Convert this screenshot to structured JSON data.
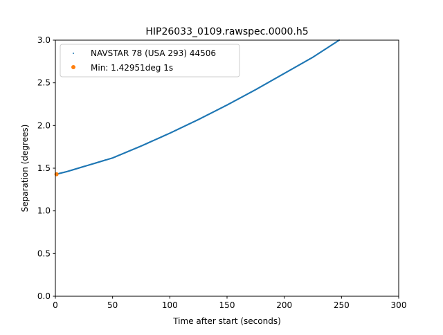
{
  "chart_data": {
    "type": "scatter",
    "title": "HIP26033_0109.rawspec.0000.h5",
    "xlabel": "Time after start (seconds)",
    "ylabel": "Separation (degrees)",
    "xlim": [
      0,
      300
    ],
    "ylim": [
      0.0,
      3.0
    ],
    "xticks": [
      "0",
      "50",
      "100",
      "150",
      "200",
      "250",
      "300"
    ],
    "yticks": [
      "0.0",
      "0.5",
      "1.0",
      "1.5",
      "2.0",
      "2.5",
      "3.0"
    ],
    "grid": false,
    "legend_position": "upper-left",
    "series": [
      {
        "name": "NAVSTAR 78 (USA 293) 44506",
        "color": "#1f77b4",
        "marker": "small-dot",
        "x": [
          1,
          10,
          25,
          50,
          75,
          100,
          125,
          150,
          175,
          200,
          225,
          248
        ],
        "y": [
          1.43,
          1.46,
          1.52,
          1.62,
          1.76,
          1.91,
          2.07,
          2.24,
          2.42,
          2.61,
          2.8,
          3.0
        ]
      },
      {
        "name": "Min: 1.42951deg 1s",
        "color": "#ff7f0e",
        "marker": "dot",
        "x": [
          1
        ],
        "y": [
          1.42951
        ]
      }
    ]
  }
}
